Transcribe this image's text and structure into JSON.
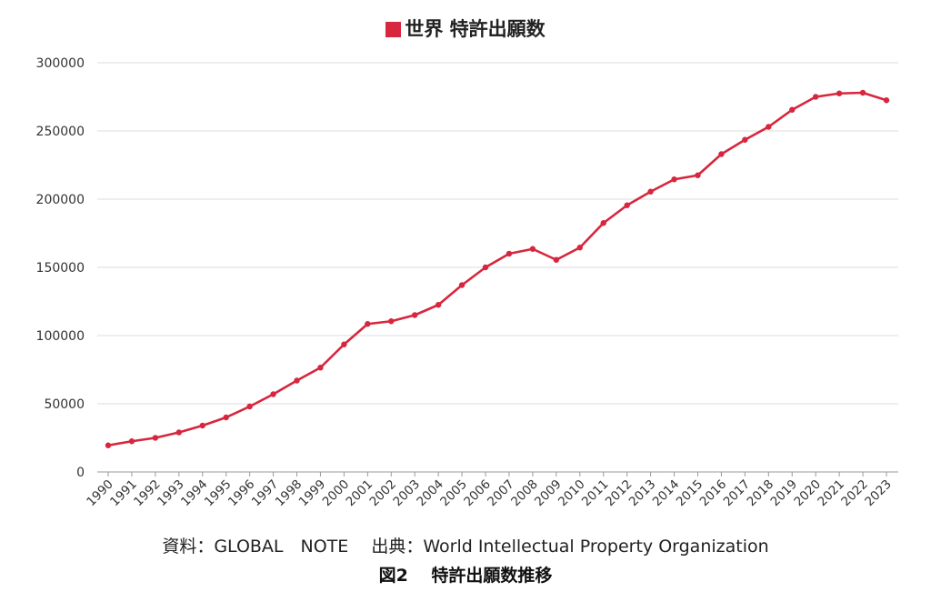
{
  "legend": {
    "label": "世界 特許出願数",
    "color": "#d7263d"
  },
  "source": "資料：GLOBAL　NOTE　 出典：World Intellectual Property Organization",
  "caption": "図2　 特許出願数推移",
  "chart_data": {
    "type": "line",
    "x": [
      "1990",
      "1991",
      "1992",
      "1993",
      "1994",
      "1995",
      "1996",
      "1997",
      "1998",
      "1999",
      "2000",
      "2001",
      "2002",
      "2003",
      "2004",
      "2005",
      "2006",
      "2007",
      "2008",
      "2009",
      "2010",
      "2011",
      "2012",
      "2013",
      "2014",
      "2015",
      "2016",
      "2017",
      "2018",
      "2019",
      "2020",
      "2021",
      "2022",
      "2023"
    ],
    "series": [
      {
        "name": "世界 特許出願数",
        "values": [
          19500,
          22500,
          25000,
          29000,
          34000,
          40000,
          48000,
          57000,
          67000,
          76500,
          93500,
          108500,
          110500,
          115000,
          122500,
          137000,
          150000,
          160000,
          163500,
          155500,
          164500,
          182500,
          195500,
          205500,
          214500,
          217500,
          233000,
          243500,
          253000,
          265500,
          275000,
          277500,
          278000,
          272500
        ]
      }
    ],
    "ylim": [
      0,
      300000
    ],
    "yticks": [
      0,
      50000,
      100000,
      150000,
      200000,
      250000,
      300000
    ],
    "grid": true,
    "legend_position": "top-center",
    "line_color": "#d7263d"
  }
}
